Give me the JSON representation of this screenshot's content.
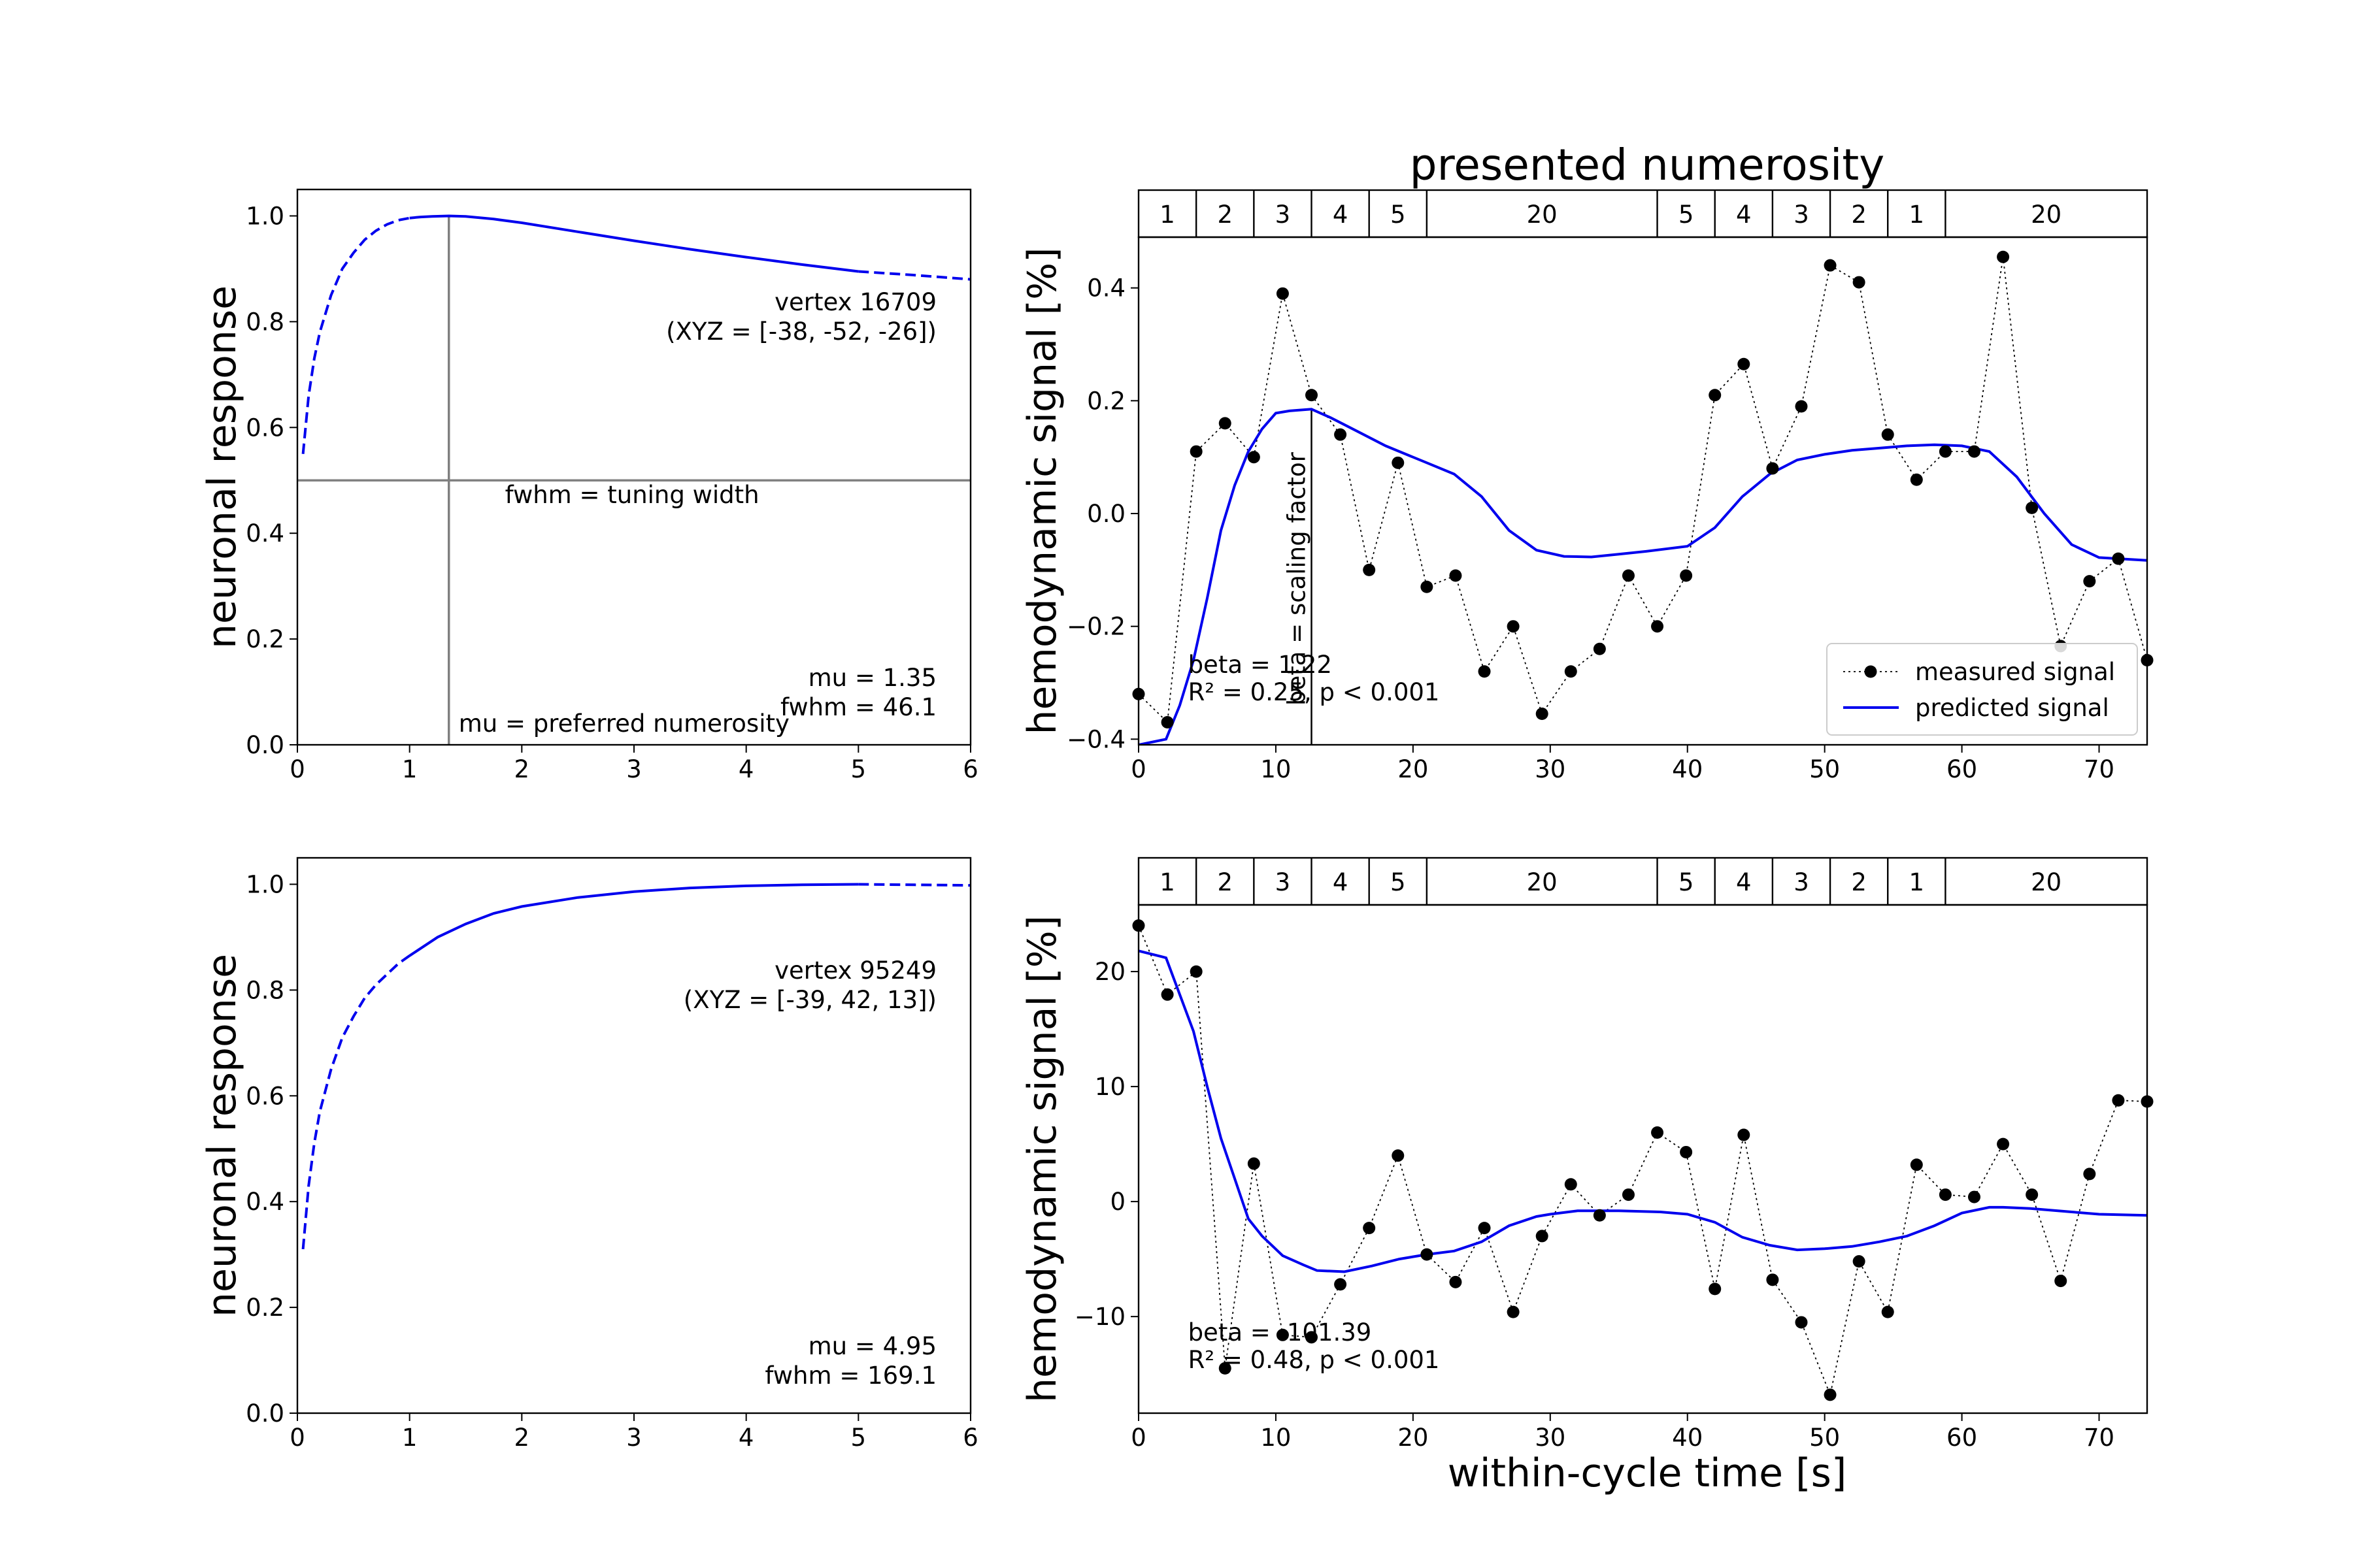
{
  "figure": {
    "top_title": "presented numerosity",
    "bottom_xlabel": "within-cycle time [s]"
  },
  "chart_data": [
    {
      "type": "line",
      "panel": "top-left",
      "ylabel": "neuronal response",
      "xlim": [
        0,
        6
      ],
      "ylim": [
        0,
        1.05
      ],
      "xticks": [
        0,
        1,
        2,
        3,
        4,
        5,
        6
      ],
      "yticks": [
        0.0,
        0.2,
        0.4,
        0.6,
        0.8,
        1.0
      ],
      "ytick_labels": [
        "0.0",
        "0.2",
        "0.4",
        "0.6",
        "0.8",
        "1.0"
      ],
      "mu": 1.35,
      "fwhm": 46.1,
      "solid_range": [
        1,
        5
      ],
      "curve_x": [
        0.05,
        0.1,
        0.15,
        0.2,
        0.3,
        0.4,
        0.5,
        0.6,
        0.7,
        0.8,
        0.9,
        1.0,
        1.1,
        1.2,
        1.35,
        1.5,
        1.75,
        2.0,
        2.5,
        3.0,
        3.5,
        4.0,
        4.5,
        5.0,
        5.5,
        6.0
      ],
      "curve_y": [
        0.55,
        0.66,
        0.73,
        0.78,
        0.85,
        0.9,
        0.93,
        0.955,
        0.972,
        0.984,
        0.992,
        0.996,
        0.998,
        0.999,
        1.0,
        0.999,
        0.994,
        0.987,
        0.97,
        0.953,
        0.937,
        0.922,
        0.908,
        0.895,
        0.888,
        0.88
      ],
      "guide_lines": [
        {
          "orientation": "horizontal",
          "y": 0.5,
          "label": "fwhm = tuning width"
        },
        {
          "orientation": "vertical",
          "x": 1.35,
          "label": "mu = preferred numerosity"
        }
      ],
      "vertex_label": "vertex 16709",
      "xyz_label": "(XYZ = [-38, -52, -26])",
      "mu_label": "mu = 1.35",
      "fwhm_label": "fwhm = 46.1"
    },
    {
      "type": "line",
      "panel": "bottom-left",
      "ylabel": "neuronal response",
      "xlim": [
        0,
        6
      ],
      "ylim": [
        0,
        1.05
      ],
      "xticks": [
        0,
        1,
        2,
        3,
        4,
        5,
        6
      ],
      "yticks": [
        0.0,
        0.2,
        0.4,
        0.6,
        0.8,
        1.0
      ],
      "ytick_labels": [
        "0.0",
        "0.2",
        "0.4",
        "0.6",
        "0.8",
        "1.0"
      ],
      "mu": 4.95,
      "fwhm": 169.1,
      "solid_range": [
        1,
        5
      ],
      "curve_x": [
        0.05,
        0.1,
        0.15,
        0.2,
        0.3,
        0.4,
        0.5,
        0.6,
        0.7,
        0.8,
        0.9,
        1.0,
        1.25,
        1.5,
        1.75,
        2.0,
        2.5,
        3.0,
        3.5,
        4.0,
        4.5,
        5.0,
        5.5,
        6.0
      ],
      "curve_y": [
        0.31,
        0.43,
        0.51,
        0.57,
        0.65,
        0.71,
        0.75,
        0.785,
        0.81,
        0.83,
        0.85,
        0.865,
        0.9,
        0.925,
        0.945,
        0.958,
        0.975,
        0.986,
        0.993,
        0.997,
        0.999,
        1.0,
        0.999,
        0.998
      ],
      "vertex_label": "vertex 95249",
      "xyz_label": "(XYZ = [-39, 42, 13])",
      "mu_label": "mu = 4.95",
      "fwhm_label": "fwhm = 169.1"
    },
    {
      "type": "line",
      "panel": "top-right",
      "ylabel": "hemodynamic signal [%]",
      "xlim": [
        0,
        73.5
      ],
      "ylim": [
        -0.41,
        0.49
      ],
      "xticks": [
        0,
        10,
        20,
        30,
        40,
        50,
        60,
        70
      ],
      "yticks": [
        -0.4,
        -0.2,
        0.0,
        0.2,
        0.4
      ],
      "ytick_labels": [
        "−0.4",
        "−0.2",
        "0.0",
        "0.2",
        "0.4"
      ],
      "numerosity_blocks": [
        {
          "label": "1",
          "start": 0,
          "end": 4.2
        },
        {
          "label": "2",
          "start": 4.2,
          "end": 8.4
        },
        {
          "label": "3",
          "start": 8.4,
          "end": 12.6
        },
        {
          "label": "4",
          "start": 12.6,
          "end": 16.8
        },
        {
          "label": "5",
          "start": 16.8,
          "end": 21.0
        },
        {
          "label": "20",
          "start": 21.0,
          "end": 37.8
        },
        {
          "label": "5",
          "start": 37.8,
          "end": 42.0
        },
        {
          "label": "4",
          "start": 42.0,
          "end": 46.2
        },
        {
          "label": "3",
          "start": 46.2,
          "end": 50.4
        },
        {
          "label": "2",
          "start": 50.4,
          "end": 54.6
        },
        {
          "label": "1",
          "start": 54.6,
          "end": 58.8
        },
        {
          "label": "20",
          "start": 58.8,
          "end": 73.5
        }
      ],
      "series": [
        {
          "name": "measured signal",
          "style": "dotted-markers",
          "color": "#000000",
          "x": [
            0,
            2.1,
            4.2,
            6.3,
            8.4,
            10.5,
            12.6,
            14.7,
            16.8,
            18.9,
            21.0,
            23.1,
            25.2,
            27.3,
            29.4,
            31.5,
            33.6,
            35.7,
            37.8,
            39.9,
            42.0,
            44.1,
            46.2,
            48.3,
            50.4,
            52.5,
            54.6,
            56.7,
            58.8,
            60.9,
            63.0,
            65.1,
            67.2,
            69.3,
            71.4,
            73.5
          ],
          "y": [
            -0.32,
            -0.37,
            0.11,
            0.16,
            0.1,
            0.39,
            0.21,
            0.14,
            -0.1,
            0.09,
            -0.13,
            -0.11,
            -0.28,
            -0.2,
            -0.355,
            -0.28,
            -0.24,
            -0.11,
            -0.2,
            -0.11,
            0.21,
            0.265,
            0.08,
            0.19,
            0.44,
            0.41,
            0.14,
            0.06,
            0.11,
            0.11,
            0.455,
            0.01,
            -0.235,
            -0.12,
            -0.08,
            -0.26
          ]
        },
        {
          "name": "predicted signal",
          "style": "solid",
          "color": "#0000ee",
          "x": [
            0,
            2,
            3,
            4,
            5,
            6,
            7,
            8,
            9,
            10,
            11,
            12.6,
            14,
            16,
            18,
            20,
            21,
            23,
            25,
            27,
            29,
            31,
            33,
            35,
            37,
            40,
            42,
            44,
            46,
            48,
            50,
            52,
            54,
            56,
            58,
            60,
            62,
            64,
            66,
            68,
            70,
            73.5
          ],
          "y": [
            -0.41,
            -0.4,
            -0.34,
            -0.26,
            -0.15,
            -0.03,
            0.05,
            0.11,
            0.15,
            0.178,
            0.182,
            0.185,
            0.17,
            0.145,
            0.12,
            0.1,
            0.09,
            0.07,
            0.03,
            -0.03,
            -0.065,
            -0.076,
            -0.077,
            -0.072,
            -0.067,
            -0.058,
            -0.025,
            0.03,
            0.07,
            0.095,
            0.105,
            0.112,
            0.116,
            0.12,
            0.122,
            0.12,
            0.11,
            0.065,
            0.0,
            -0.055,
            -0.078,
            -0.083
          ]
        }
      ],
      "beta_line": {
        "x": 12.6,
        "y_top": 0.185,
        "label": "beta = scaling factor"
      },
      "beta_label": "beta = 1.22",
      "r2_label": "R² = 0.25, p < 0.001",
      "legend": {
        "position": "lower-right",
        "entries": [
          "measured signal",
          "predicted signal"
        ]
      }
    },
    {
      "type": "line",
      "panel": "bottom-right",
      "ylabel": "hemodynamic signal [%]",
      "xlabel": "within-cycle time [s]",
      "xlim": [
        0,
        73.5
      ],
      "ylim": [
        -18.4,
        25.8
      ],
      "xticks": [
        0,
        10,
        20,
        30,
        40,
        50,
        60,
        70
      ],
      "yticks": [
        -10,
        0,
        10,
        20
      ],
      "ytick_labels": [
        "−10",
        "0",
        "10",
        "20"
      ],
      "numerosity_blocks": [
        {
          "label": "1",
          "start": 0,
          "end": 4.2
        },
        {
          "label": "2",
          "start": 4.2,
          "end": 8.4
        },
        {
          "label": "3",
          "start": 8.4,
          "end": 12.6
        },
        {
          "label": "4",
          "start": 12.6,
          "end": 16.8
        },
        {
          "label": "5",
          "start": 16.8,
          "end": 21.0
        },
        {
          "label": "20",
          "start": 21.0,
          "end": 37.8
        },
        {
          "label": "5",
          "start": 37.8,
          "end": 42.0
        },
        {
          "label": "4",
          "start": 42.0,
          "end": 46.2
        },
        {
          "label": "3",
          "start": 46.2,
          "end": 50.4
        },
        {
          "label": "2",
          "start": 50.4,
          "end": 54.6
        },
        {
          "label": "1",
          "start": 54.6,
          "end": 58.8
        },
        {
          "label": "20",
          "start": 58.8,
          "end": 73.5
        }
      ],
      "series": [
        {
          "name": "measured signal",
          "style": "dotted-markers",
          "color": "#000000",
          "x": [
            0,
            2.1,
            4.2,
            6.3,
            8.4,
            10.5,
            12.6,
            14.7,
            16.8,
            18.9,
            21.0,
            23.1,
            25.2,
            27.3,
            29.4,
            31.5,
            33.6,
            35.7,
            37.8,
            39.9,
            42.0,
            44.1,
            46.2,
            48.3,
            50.4,
            52.5,
            54.6,
            56.7,
            58.8,
            60.9,
            63.0,
            65.1,
            67.2,
            69.3,
            71.4,
            73.5
          ],
          "y": [
            24,
            18,
            20,
            -14.5,
            3.3,
            -11.6,
            -11.8,
            -7.2,
            -2.3,
            4,
            -4.6,
            -7,
            -2.3,
            -9.6,
            -3,
            1.5,
            -1.2,
            0.6,
            6,
            4.3,
            -7.6,
            5.8,
            -6.8,
            -10.5,
            -16.8,
            -5.2,
            -9.6,
            3.2,
            0.6,
            0.4,
            5,
            0.6,
            -6.9,
            2.4,
            8.8,
            8.7
          ]
        },
        {
          "name": "predicted signal",
          "style": "solid",
          "color": "#0000ee",
          "x": [
            0,
            2,
            3,
            4,
            5,
            6,
            7,
            8,
            9,
            10.5,
            12,
            13,
            15,
            17,
            19,
            21,
            23,
            25,
            27,
            29,
            30,
            32,
            35,
            38,
            40,
            42,
            44,
            46,
            48,
            50,
            52,
            54,
            56,
            58,
            60,
            62,
            63,
            65,
            68,
            70,
            73.5
          ],
          "y": [
            21.8,
            21.2,
            18,
            14.8,
            10,
            5.5,
            2,
            -1.5,
            -3,
            -4.7,
            -5.5,
            -6,
            -6.1,
            -5.6,
            -5,
            -4.6,
            -4.3,
            -3.5,
            -2.1,
            -1.3,
            -1.1,
            -0.8,
            -0.8,
            -0.9,
            -1.1,
            -1.8,
            -3.1,
            -3.8,
            -4.2,
            -4.1,
            -3.9,
            -3.5,
            -3.0,
            -2.1,
            -1.0,
            -0.5,
            -0.5,
            -0.6,
            -0.9,
            -1.1,
            -1.2
          ]
        }
      ],
      "beta_label": "beta = -101.39",
      "r2_label": "R² = 0.48, p < 0.001"
    }
  ]
}
